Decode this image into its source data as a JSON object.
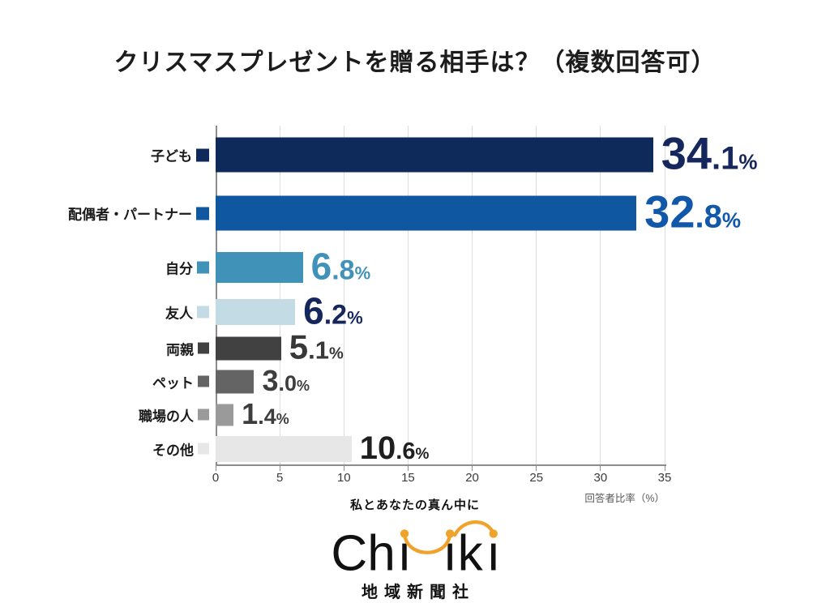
{
  "title": "クリスマスプレゼントを贈る相手は？（複数回答可）",
  "chart_data": {
    "type": "bar",
    "orientation": "horizontal",
    "title": "クリスマスプレゼントを贈る相手は？（複数回答可）",
    "categories": [
      "子ども",
      "配偶者・パートナー",
      "自分",
      "友人",
      "両親",
      "ペット",
      "職場の人",
      "その他"
    ],
    "values": [
      34.1,
      32.8,
      6.8,
      6.2,
      5.1,
      3.0,
      1.4,
      10.6
    ],
    "value_labels": [
      "34.1%",
      "32.8%",
      "6.8%",
      "6.2%",
      "5.1%",
      "3.0%",
      "1.4%",
      "10.6%"
    ],
    "bar_colors": [
      "#0e2a5b",
      "#0f57a0",
      "#4192b8",
      "#c3dbe5",
      "#414141",
      "#646464",
      "#9a9a9a",
      "#e7e7e7"
    ],
    "value_label_colors": [
      "#15275c",
      "#1158a8",
      "#4192b8",
      "#15275c",
      "#383838",
      "#3d3d3d",
      "#3d3d3d",
      "#1f1f1f"
    ],
    "xlim": [
      0,
      35
    ],
    "x_ticks": [
      0,
      5,
      10,
      15,
      20,
      25,
      30,
      35
    ],
    "xlabel": "回答者比率（%）",
    "grid": true,
    "legend_position": "inline-category-markers"
  },
  "footer": {
    "tagline": "私とあなたの真ん中に",
    "logo_text": "Chiiki",
    "logo_accent_color": "#f0a32c",
    "logo_text_color": "#111111",
    "company": "地域新聞社"
  }
}
